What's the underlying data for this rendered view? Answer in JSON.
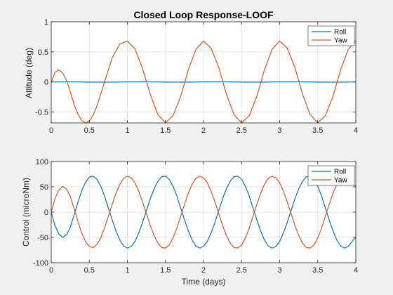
{
  "chart_data": [
    {
      "type": "line",
      "title": "Closed Loop Response-LOOF",
      "xlabel": "",
      "ylabel": "Attitude  (deg)",
      "xlim": [
        0,
        4
      ],
      "ylim": [
        -0.68,
        1
      ],
      "xticks": [
        "0",
        "0.5",
        "1",
        "1.5",
        "2",
        "2.5",
        "3",
        "3.5",
        "4"
      ],
      "yticks": [
        "-0.5",
        "0",
        "0.5",
        "1"
      ],
      "grid": true,
      "legend_position": "top-right",
      "series": [
        {
          "name": "Roll",
          "color": "#0072BD",
          "x": [
            0,
            0.25,
            0.5,
            0.75,
            1,
            1.25,
            1.5,
            1.75,
            2,
            2.25,
            2.5,
            2.75,
            3,
            3.25,
            3.5,
            3.75,
            4
          ],
          "y": [
            0,
            0.002,
            -0.002,
            -0.003,
            0.002,
            0.003,
            -0.002,
            -0.003,
            0.002,
            0.003,
            -0.002,
            -0.003,
            0.002,
            0.003,
            -0.002,
            -0.003,
            0
          ]
        },
        {
          "name": "Yaw",
          "color": "#D95319",
          "x": [
            0,
            0.05,
            0.1,
            0.15,
            0.2,
            0.25,
            0.3,
            0.35,
            0.4,
            0.45,
            0.5,
            0.55,
            0.6,
            0.7,
            0.8,
            0.9,
            1.0,
            1.1,
            1.2,
            1.3,
            1.4,
            1.5,
            1.6,
            1.7,
            1.8,
            1.9,
            2.0,
            2.1,
            2.2,
            2.3,
            2.4,
            2.5,
            2.6,
            2.7,
            2.8,
            2.9,
            3.0,
            3.1,
            3.2,
            3.3,
            3.4,
            3.5,
            3.6,
            3.7,
            3.8,
            3.9,
            4.0
          ],
          "y": [
            0,
            0.16,
            0.2,
            0.15,
            0.03,
            -0.16,
            -0.37,
            -0.53,
            -0.64,
            -0.68,
            -0.65,
            -0.55,
            -0.4,
            0.0,
            0.4,
            0.63,
            0.68,
            0.55,
            0.22,
            -0.2,
            -0.54,
            -0.68,
            -0.56,
            -0.24,
            0.2,
            0.54,
            0.68,
            0.56,
            0.24,
            -0.2,
            -0.54,
            -0.68,
            -0.56,
            -0.24,
            0.2,
            0.54,
            0.68,
            0.56,
            0.24,
            -0.2,
            -0.54,
            -0.68,
            -0.56,
            -0.24,
            0.2,
            0.54,
            0.68
          ]
        }
      ]
    },
    {
      "type": "line",
      "title": "",
      "xlabel": "Time (days)",
      "ylabel": "Control (microNm)",
      "xlim": [
        0,
        4
      ],
      "ylim": [
        -100,
        100
      ],
      "xticks": [
        "0",
        "0.5",
        "1",
        "1.5",
        "2",
        "2.5",
        "3",
        "3.5",
        "4"
      ],
      "yticks": [
        "-100",
        "-50",
        "0",
        "50",
        "100"
      ],
      "grid": true,
      "legend_position": "top-right",
      "series": [
        {
          "name": "Roll",
          "color": "#0072BD",
          "x": [
            0,
            0.05,
            0.1,
            0.15,
            0.2,
            0.25,
            0.3,
            0.35,
            0.4,
            0.45,
            0.5,
            0.55,
            0.6,
            0.65,
            0.7,
            0.75,
            0.8,
            0.85,
            0.9,
            0.95,
            1.0,
            1.05,
            1.1,
            1.15,
            1.2,
            1.25,
            1.3,
            1.35,
            1.4,
            1.45,
            1.5,
            1.55,
            1.6,
            1.65,
            1.7,
            1.75,
            1.8,
            1.85,
            1.9,
            1.95,
            2.0,
            2.05,
            2.1,
            2.15,
            2.2,
            2.25,
            2.3,
            2.35,
            2.4,
            2.45,
            2.5,
            2.55,
            2.6,
            2.65,
            2.7,
            2.75,
            2.8,
            2.85,
            2.9,
            2.95,
            3.0,
            3.05,
            3.1,
            3.15,
            3.2,
            3.25,
            3.3,
            3.35,
            3.4,
            3.45,
            3.5,
            3.55,
            3.6,
            3.65,
            3.7,
            3.75,
            3.8,
            3.85,
            3.9,
            3.95,
            4.0
          ],
          "y": [
            0,
            -27,
            -43,
            -50,
            -45,
            -30,
            -6,
            19,
            42,
            59,
            69,
            71,
            65,
            51,
            32,
            8,
            -15,
            -37,
            -55,
            -67,
            -71,
            -68,
            -58,
            -41,
            -20,
            3,
            26,
            46,
            61,
            70,
            71,
            65,
            51,
            32,
            8,
            -15,
            -37,
            -55,
            -67,
            -71,
            -68,
            -58,
            -41,
            -20,
            3,
            26,
            46,
            61,
            70,
            71,
            65,
            51,
            32,
            8,
            -15,
            -37,
            -55,
            -67,
            -71,
            -68,
            -58,
            -41,
            -20,
            3,
            26,
            46,
            61,
            70,
            71,
            65,
            51,
            32,
            8,
            -15,
            -37,
            -55,
            -67,
            -71,
            -68,
            -58,
            -50
          ]
        },
        {
          "name": "Yaw",
          "color": "#D95319",
          "x": [
            0,
            0.05,
            0.1,
            0.15,
            0.2,
            0.25,
            0.3,
            0.35,
            0.4,
            0.45,
            0.5,
            0.55,
            0.6,
            0.65,
            0.7,
            0.75,
            0.8,
            0.85,
            0.9,
            0.95,
            1.0,
            1.05,
            1.1,
            1.15,
            1.2,
            1.25,
            1.3,
            1.35,
            1.4,
            1.45,
            1.5,
            1.55,
            1.6,
            1.65,
            1.7,
            1.75,
            1.8,
            1.85,
            1.9,
            1.95,
            2.0,
            2.05,
            2.1,
            2.15,
            2.2,
            2.25,
            2.3,
            2.35,
            2.4,
            2.45,
            2.5,
            2.55,
            2.6,
            2.65,
            2.7,
            2.75,
            2.8,
            2.85,
            2.9,
            2.95,
            3.0,
            3.05,
            3.1,
            3.15,
            3.2,
            3.25,
            3.3,
            3.35,
            3.4,
            3.45,
            3.5,
            3.55,
            3.6,
            3.65,
            3.7,
            3.75,
            3.8,
            3.85,
            3.9,
            3.95,
            4.0
          ],
          "y": [
            0,
            27,
            44,
            51,
            46,
            31,
            7,
            -18,
            -41,
            -58,
            -68,
            -70,
            -64,
            -51,
            -32,
            -8,
            15,
            37,
            55,
            67,
            71,
            68,
            58,
            41,
            20,
            -3,
            -26,
            -46,
            -61,
            -70,
            -71,
            -65,
            -51,
            -32,
            -8,
            15,
            37,
            55,
            67,
            71,
            68,
            58,
            41,
            20,
            -3,
            -26,
            -46,
            -61,
            -70,
            -71,
            -65,
            -51,
            -32,
            -8,
            15,
            37,
            55,
            67,
            71,
            68,
            58,
            41,
            20,
            -3,
            -26,
            -46,
            -61,
            -70,
            -71,
            -65,
            -51,
            -32,
            -8,
            15,
            37,
            55,
            67,
            71,
            68,
            58,
            51
          ]
        }
      ]
    }
  ]
}
